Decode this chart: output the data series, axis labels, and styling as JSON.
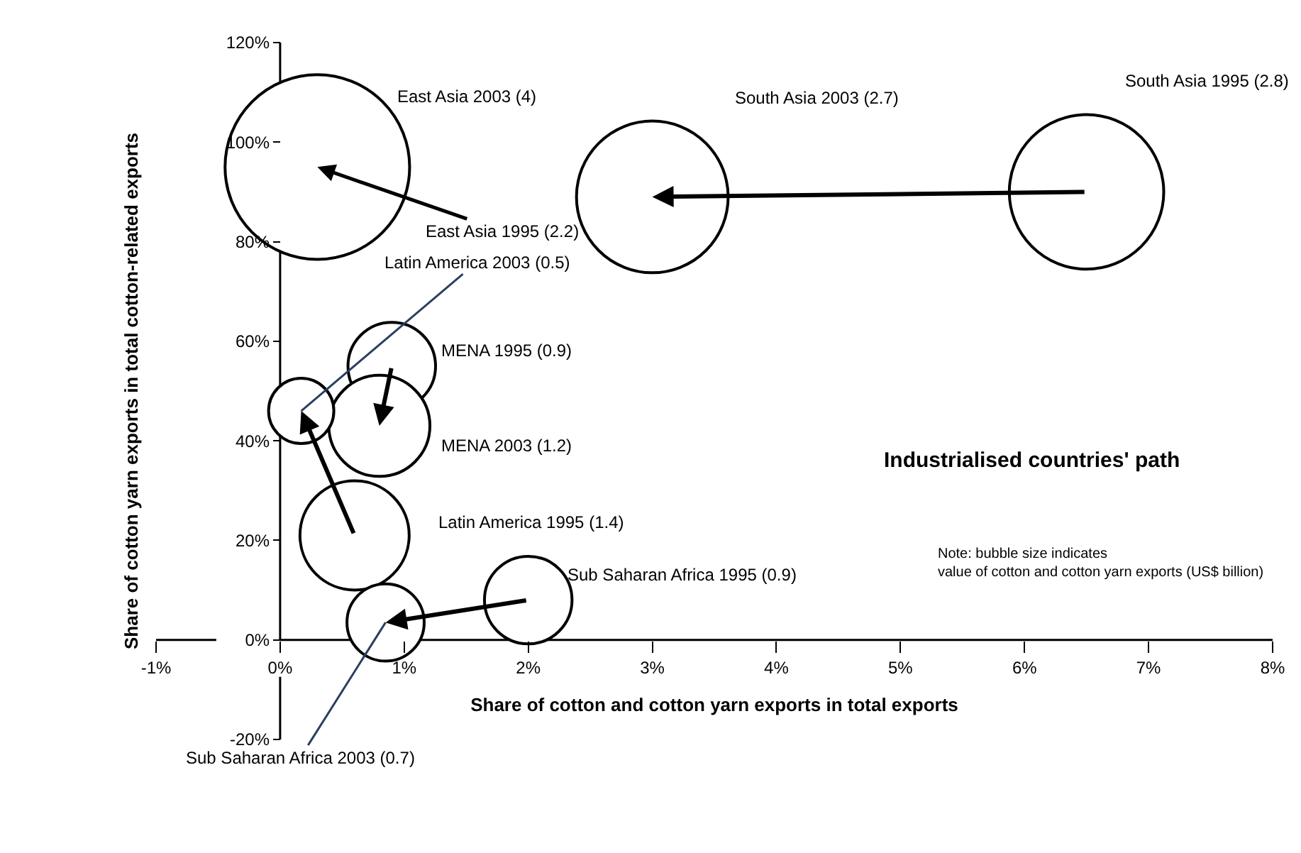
{
  "chart_data": {
    "type": "bubble",
    "xlabel": "Share of cotton and cotton yarn exports in total exports",
    "ylabel": "Share of cotton yarn exports in total cotton-related exports",
    "xlim": [
      -1,
      8
    ],
    "xticks": [
      {
        "value": -1,
        "label": "-1%"
      },
      {
        "value": 0,
        "label": "0%"
      },
      {
        "value": 1,
        "label": "1%"
      },
      {
        "value": 2,
        "label": "2%"
      },
      {
        "value": 3,
        "label": "3%"
      },
      {
        "value": 4,
        "label": "4%"
      },
      {
        "value": 5,
        "label": "5%"
      },
      {
        "value": 6,
        "label": "6%"
      },
      {
        "value": 7,
        "label": "7%"
      },
      {
        "value": 8,
        "label": "8%"
      }
    ],
    "ylim": [
      -20,
      120
    ],
    "yticks": [
      {
        "value": -20,
        "label": "-20%"
      },
      {
        "value": 0,
        "label": "0%"
      },
      {
        "value": 20,
        "label": "20%"
      },
      {
        "value": 40,
        "label": "40%"
      },
      {
        "value": 60,
        "label": "60%"
      },
      {
        "value": 80,
        "label": "80%"
      },
      {
        "value": 100,
        "label": "100%"
      },
      {
        "value": 120,
        "label": "120%"
      }
    ],
    "grid": false,
    "series": [
      {
        "color": "#000000",
        "x": [
          6.5,
          3.0
        ],
        "values": [
          90,
          89
        ],
        "sizes": [
          0.7,
          0.675
        ],
        "value_labels": [
          "South Asia 1995 (2.8)",
          "South Asia 2003 (2.7)"
        ]
      },
      {
        "color": "#000000",
        "x": [
          0.9,
          0.8
        ],
        "values": [
          55,
          43
        ],
        "sizes": [
          0.225,
          0.3
        ],
        "value_labels": [
          "MENA 1995 (0.9)",
          "MENA 2003 (1.2)"
        ]
      },
      {
        "color": "#000000",
        "x": [
          0.6,
          0.17
        ],
        "values": [
          21,
          46
        ],
        "sizes": [
          0.35,
          0.125
        ],
        "value_labels": [
          "Latin America 1995 (1.4)",
          "Latin America 2003 (0.5)"
        ]
      },
      {
        "color": "#000000",
        "x": [
          2.0,
          0.85
        ],
        "values": [
          8,
          3.5
        ],
        "sizes": [
          0.225,
          0.175
        ],
        "value_labels": [
          "Sub Saharan Africa 1995 (0.9)",
          "Sub Saharan Africa 2003 (0.7)"
        ]
      },
      {
        "color": "#000000",
        "x": [
          0.3
        ],
        "values": [
          95
        ],
        "sizes": [
          1
        ],
        "value_labels": [
          "East Asia 2003 (4)"
        ]
      }
    ],
    "annotations": [
      {
        "text": "East Asia 1995 (2.2)",
        "x": 0.3,
        "y": 95
      },
      "Industrialised countries' path",
      "Note: bubble size indicates\nvalue of cotton and cotton yarn exports (US$ billion)"
    ]
  }
}
